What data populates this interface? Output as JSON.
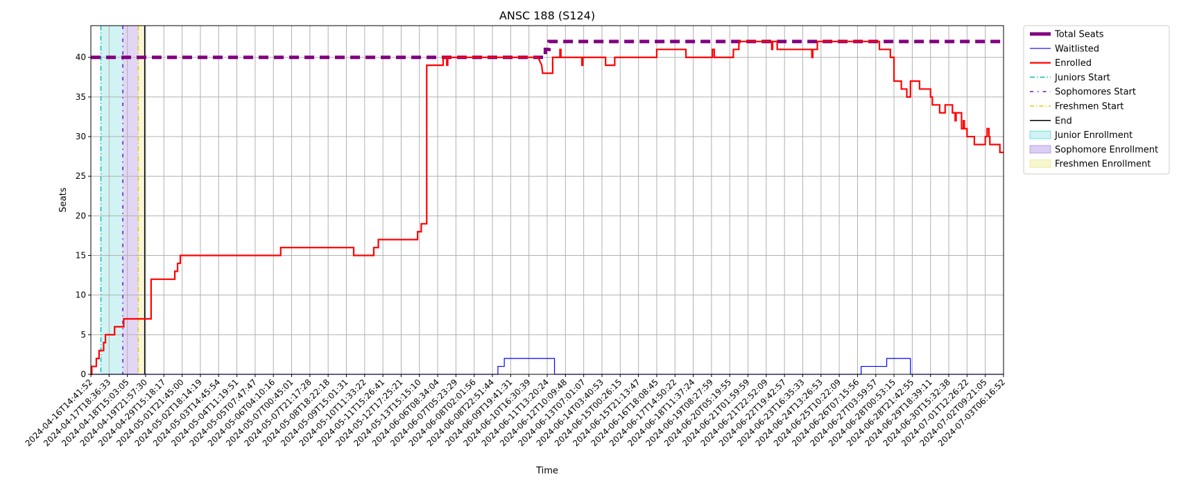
{
  "chart_data": {
    "type": "line",
    "title": "ANSC 188 (S124)",
    "xlabel": "Time",
    "ylabel": "Seats",
    "ylim": [
      0,
      44
    ],
    "yticks": [
      0,
      5,
      10,
      15,
      20,
      25,
      30,
      35,
      40
    ],
    "grid": true,
    "legend_position": "outside-right",
    "x_tick_labels": [
      "2024-04-16T14:41:52",
      "2024-04-17T18:36:33",
      "2024-04-18T15:03:05",
      "2024-04-19T21:57:30",
      "2024-04-29T15:18:17",
      "2024-05-01T21:45:00",
      "2024-05-02T18:14:19",
      "2024-05-03T14:45:54",
      "2024-05-04T11:19:51",
      "2024-05-05T07:47:47",
      "2024-05-06T04:10:16",
      "2024-05-07T00:45:01",
      "2024-05-07T21:17:28",
      "2024-05-08T18:22:18",
      "2024-05-09T15:01:31",
      "2024-05-10T11:33:22",
      "2024-05-11T15:26:41",
      "2024-05-12T17:25:21",
      "2024-05-13T15:15:10",
      "2024-06-06T08:34:04",
      "2024-06-07T05:23:29",
      "2024-06-08T02:01:56",
      "2024-06-08T22:51:44",
      "2024-06-09T19:41:31",
      "2024-06-10T16:30:39",
      "2024-06-11T13:20:24",
      "2024-06-12T10:09:48",
      "2024-06-13T07:01:07",
      "2024-06-14T03:40:53",
      "2024-06-15T00:26:15",
      "2024-06-15T21:13:47",
      "2024-06-16T18:08:45",
      "2024-06-17T14:50:22",
      "2024-06-18T11:37:24",
      "2024-06-19T08:27:59",
      "2024-06-20T05:19:55",
      "2024-06-21T01:59:59",
      "2024-06-21T22:52:09",
      "2024-06-22T19:42:57",
      "2024-06-23T16:35:33",
      "2024-06-24T13:26:53",
      "2024-06-25T10:22:09",
      "2024-06-26T07:15:56",
      "2024-06-27T03:59:57",
      "2024-06-28T00:53:15",
      "2024-06-28T21:42:55",
      "2024-06-29T18:39:11",
      "2024-06-30T15:32:38",
      "2024-07-01T12:26:22",
      "2024-07-02T09:21:05",
      "2024-07-03T06:16:52"
    ],
    "x_range": [
      0,
      50
    ],
    "series": [
      {
        "name": "Total Seats",
        "color": "#800080",
        "style": "dashed-thick",
        "points": [
          [
            0,
            40
          ],
          [
            24.9,
            40
          ],
          [
            24.9,
            41
          ],
          [
            25.1,
            41
          ],
          [
            25.1,
            42
          ],
          [
            50,
            42
          ]
        ]
      },
      {
        "name": "Waitlisted",
        "color": "#0000ff",
        "style": "solid-thin",
        "points": [
          [
            0,
            0
          ],
          [
            22.3,
            0
          ],
          [
            22.3,
            1
          ],
          [
            22.65,
            1
          ],
          [
            22.65,
            2
          ],
          [
            25.4,
            2
          ],
          [
            25.4,
            0
          ],
          [
            42.2,
            0
          ],
          [
            42.2,
            1
          ],
          [
            43.6,
            1
          ],
          [
            43.6,
            2
          ],
          [
            44.9,
            2
          ],
          [
            44.9,
            0
          ],
          [
            50,
            0
          ]
        ]
      },
      {
        "name": "Enrolled",
        "color": "#ff0000",
        "style": "solid-thick",
        "points": [
          [
            0,
            0
          ],
          [
            0.05,
            0
          ],
          [
            0.05,
            1
          ],
          [
            0.3,
            1
          ],
          [
            0.3,
            2
          ],
          [
            0.45,
            2
          ],
          [
            0.45,
            3
          ],
          [
            0.7,
            3
          ],
          [
            0.7,
            4
          ],
          [
            0.8,
            4
          ],
          [
            0.8,
            5
          ],
          [
            1.3,
            5
          ],
          [
            1.3,
            6
          ],
          [
            1.8,
            6
          ],
          [
            1.8,
            7
          ],
          [
            3.3,
            7
          ],
          [
            3.3,
            12
          ],
          [
            4.6,
            12
          ],
          [
            4.6,
            13
          ],
          [
            4.75,
            13
          ],
          [
            4.75,
            14
          ],
          [
            4.9,
            14
          ],
          [
            4.9,
            15
          ],
          [
            10.4,
            15
          ],
          [
            10.4,
            16
          ],
          [
            14.4,
            16
          ],
          [
            14.4,
            15
          ],
          [
            15.5,
            15
          ],
          [
            15.5,
            16
          ],
          [
            15.75,
            16
          ],
          [
            15.75,
            17
          ],
          [
            17.9,
            17
          ],
          [
            17.9,
            18
          ],
          [
            18.1,
            18
          ],
          [
            18.1,
            19
          ],
          [
            18.4,
            19
          ],
          [
            18.4,
            39
          ],
          [
            19.3,
            39
          ],
          [
            19.3,
            40
          ],
          [
            19.5,
            40
          ],
          [
            19.5,
            39
          ],
          [
            19.55,
            39
          ],
          [
            19.55,
            40
          ],
          [
            24.5,
            40
          ],
          [
            24.7,
            39
          ],
          [
            24.75,
            38
          ],
          [
            25.3,
            38
          ],
          [
            25.3,
            40
          ],
          [
            25.7,
            40
          ],
          [
            25.7,
            41
          ],
          [
            25.75,
            41
          ],
          [
            25.75,
            40
          ],
          [
            26.9,
            40
          ],
          [
            26.9,
            39
          ],
          [
            26.95,
            39
          ],
          [
            26.95,
            40
          ],
          [
            28.2,
            40
          ],
          [
            28.2,
            39
          ],
          [
            28.7,
            39
          ],
          [
            28.7,
            40
          ],
          [
            31.0,
            40
          ],
          [
            31.0,
            41
          ],
          [
            32.6,
            41
          ],
          [
            32.6,
            40
          ],
          [
            34.05,
            40
          ],
          [
            34.05,
            41
          ],
          [
            34.15,
            41
          ],
          [
            34.15,
            40
          ],
          [
            35.2,
            40
          ],
          [
            35.2,
            41
          ],
          [
            35.5,
            41
          ],
          [
            35.5,
            42
          ],
          [
            37.3,
            42
          ],
          [
            37.3,
            41
          ],
          [
            37.35,
            41
          ],
          [
            37.35,
            42
          ],
          [
            37.6,
            42
          ],
          [
            37.6,
            41
          ],
          [
            39.5,
            41
          ],
          [
            39.5,
            40
          ],
          [
            39.55,
            40
          ],
          [
            39.55,
            41
          ],
          [
            39.8,
            41
          ],
          [
            39.8,
            42
          ],
          [
            43.2,
            42
          ],
          [
            43.2,
            41
          ],
          [
            43.8,
            41
          ],
          [
            43.8,
            40
          ],
          [
            44.0,
            40
          ],
          [
            44.0,
            37
          ],
          [
            44.4,
            37
          ],
          [
            44.4,
            36
          ],
          [
            44.7,
            36
          ],
          [
            44.7,
            35
          ],
          [
            44.9,
            35
          ],
          [
            44.9,
            37
          ],
          [
            45.4,
            37
          ],
          [
            45.4,
            36
          ],
          [
            46.0,
            36
          ],
          [
            46.0,
            35
          ],
          [
            46.1,
            35
          ],
          [
            46.1,
            34
          ],
          [
            46.5,
            34
          ],
          [
            46.5,
            33
          ],
          [
            46.8,
            33
          ],
          [
            46.8,
            34
          ],
          [
            47.2,
            34
          ],
          [
            47.2,
            33
          ],
          [
            47.35,
            33
          ],
          [
            47.35,
            32
          ],
          [
            47.4,
            32
          ],
          [
            47.4,
            33
          ],
          [
            47.7,
            33
          ],
          [
            47.7,
            31
          ],
          [
            47.8,
            31
          ],
          [
            47.8,
            32
          ],
          [
            47.85,
            32
          ],
          [
            47.85,
            31
          ],
          [
            48.0,
            31
          ],
          [
            48.0,
            30
          ],
          [
            48.4,
            30
          ],
          [
            48.4,
            29
          ],
          [
            49.0,
            29
          ],
          [
            49.0,
            30
          ],
          [
            49.1,
            30
          ],
          [
            49.1,
            31
          ],
          [
            49.2,
            31
          ],
          [
            49.2,
            30
          ],
          [
            49.25,
            30
          ],
          [
            49.25,
            29
          ],
          [
            49.8,
            29
          ],
          [
            49.8,
            28
          ],
          [
            50,
            28
          ]
        ]
      }
    ],
    "vertical_lines": [
      {
        "name": "Juniors Start",
        "x": 0.55,
        "color": "#00bfbf",
        "style": "dashdot"
      },
      {
        "name": "Sophomores Start",
        "x": 1.75,
        "color": "#6a0dd6",
        "style": "dashdot-dense"
      },
      {
        "name": "Freshmen Start",
        "x": 2.6,
        "color": "#e8c800",
        "style": "dashdot"
      },
      {
        "name": "End",
        "x": 2.95,
        "color": "#000000",
        "style": "solid"
      }
    ],
    "shaded_regions": [
      {
        "name": "Junior Enrollment",
        "x0": 0.55,
        "x1": 1.75,
        "color": "#00bfbf",
        "opacity": 0.18
      },
      {
        "name": "Sophomore Enrollment",
        "x0": 1.75,
        "x1": 2.6,
        "color": "#8a5ad8",
        "opacity": 0.25
      },
      {
        "name": "Freshmen Enrollment",
        "x0": 2.6,
        "x1": 2.95,
        "color": "#e0e060",
        "opacity": 0.25
      }
    ],
    "legend": [
      {
        "label": "Total Seats",
        "kind": "line",
        "color": "#800080",
        "dash": "",
        "width": 5
      },
      {
        "label": "Waitlisted",
        "kind": "line",
        "color": "#0000ff",
        "dash": "",
        "width": 1.2
      },
      {
        "label": "Enrolled",
        "kind": "line",
        "color": "#ff0000",
        "dash": "",
        "width": 2.2
      },
      {
        "label": "Juniors Start",
        "kind": "line",
        "color": "#00bfbf",
        "dash": "7,3,1.5,3",
        "width": 1.5
      },
      {
        "label": "Sophomores Start",
        "kind": "line",
        "color": "#6a0dd6",
        "dash": "5,6,1.5,6",
        "width": 1.5
      },
      {
        "label": "Freshmen Start",
        "kind": "line",
        "color": "#e8c800",
        "dash": "6,3,1.5,3",
        "width": 1.5
      },
      {
        "label": "End",
        "kind": "line",
        "color": "#000000",
        "dash": "",
        "width": 1.5
      },
      {
        "label": "Junior Enrollment",
        "kind": "patch",
        "color": "#00bfbf",
        "opacity": 0.18
      },
      {
        "label": "Sophomore Enrollment",
        "kind": "patch",
        "color": "#8a5ad8",
        "opacity": 0.3
      },
      {
        "label": "Freshmen Enrollment",
        "kind": "patch",
        "color": "#e0e060",
        "opacity": 0.3
      }
    ]
  }
}
